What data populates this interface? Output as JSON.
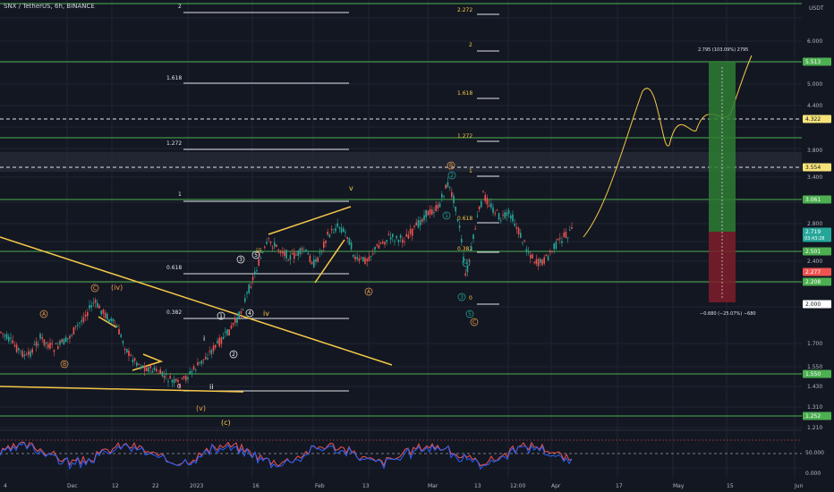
{
  "header": {
    "symbol_title": "SNX / TetherUS, 6h, BINANCE",
    "currency": "USDT"
  },
  "colors": {
    "bg": "#131722",
    "candle_up": "#26a69a",
    "candle_down": "#ef5350",
    "hline": "#4caf50",
    "fib": "#e0e3eb",
    "wave_label": "#ffffff",
    "orange": "#f0a050",
    "yellow": "#f7c948"
  },
  "price_axis": {
    "ticks": [
      "6.000",
      "5.000",
      "4.400",
      "3.800",
      "3.400",
      "2.800",
      "2.400",
      "1.700",
      "1.550",
      "1.430",
      "1.310",
      "1.210"
    ],
    "markers": [
      {
        "label": "5.513",
        "bg": "#4caf50"
      },
      {
        "label": "4.322",
        "bg": "#f7e479"
      },
      {
        "label": "3.554",
        "bg": "#f7e479"
      },
      {
        "label": "3.061",
        "bg": "#4caf50"
      },
      {
        "label": "2.719",
        "sub": "03:43:28",
        "bg": "#26a69a"
      },
      {
        "label": "2.501",
        "bg": "#4caf50"
      },
      {
        "label": "2.277",
        "bg": "#ef5350"
      },
      {
        "label": "2.208",
        "bg": "#4caf50"
      },
      {
        "label": "2.000",
        "bg": "#ffffff"
      },
      {
        "label": "1.550",
        "bg": "#4caf50"
      },
      {
        "label": "1.252",
        "bg": "#4caf50"
      }
    ],
    "rsi_ticks": [
      "50.000",
      "0.000"
    ]
  },
  "time_axis": [
    "4",
    "Dec",
    "12",
    "22",
    "2023",
    "16",
    "Feb",
    "13",
    "Mar",
    "13",
    "12:00",
    "Apr",
    "17",
    "May",
    "15",
    "Jun"
  ],
  "fib_left": [
    "2",
    "1.618",
    "1.272",
    "1",
    "0.618",
    "0.382"
  ],
  "fib_right": [
    "2.272",
    "2",
    "1.618",
    "1.272",
    "1",
    "0.618",
    "0.382",
    "0"
  ],
  "wave_labels": {
    "roman": [
      "i",
      "ii",
      "iii",
      "iv",
      "v",
      "(iv)",
      "(v)",
      "(c)"
    ],
    "circled": [
      "1",
      "2",
      "3",
      "4",
      "5"
    ],
    "letters": [
      "A",
      "B",
      "C"
    ]
  },
  "position_tool": {
    "target_text": "2.795 (103.09%) 2795",
    "stop_text": "−0.680 (−25.07%) −680"
  }
}
